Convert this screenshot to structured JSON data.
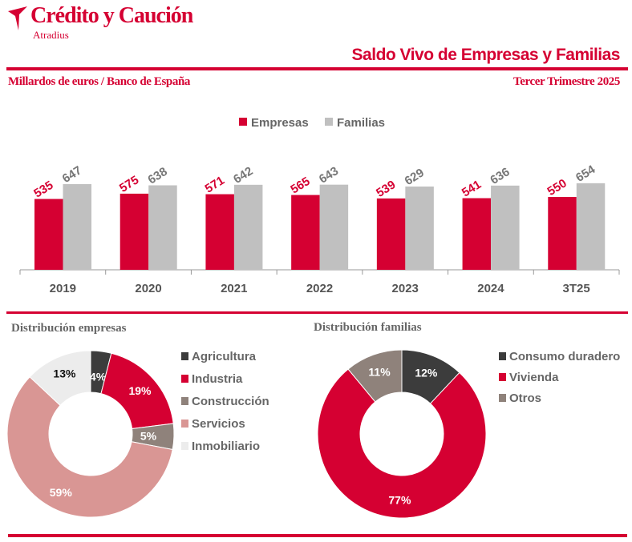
{
  "brand": {
    "name": "Crédito y Caución",
    "sub": "Atradius"
  },
  "header": {
    "title": "Saldo Vivo de Empresas y Familias",
    "source": "Millardos de euros / Banco de España",
    "period": "Tercer Trimestre  2025"
  },
  "colors": {
    "accent": "#d50032",
    "familias": "#c0c0c0",
    "dark": "#3c3c3c",
    "taupe": "#8f827b",
    "pink": "#d99694",
    "light": "#ececec"
  },
  "chart_data": [
    {
      "type": "bar",
      "categories": [
        "2019",
        "2020",
        "2021",
        "2022",
        "2023",
        "2024",
        "3T25"
      ],
      "series": [
        {
          "name": "Empresas",
          "values": [
            535,
            575,
            571,
            565,
            539,
            541,
            550
          ],
          "color": "#d50032"
        },
        {
          "name": "Familias",
          "values": [
            647,
            638,
            642,
            643,
            629,
            636,
            654
          ],
          "color": "#c0c0c0"
        }
      ],
      "ylim": [
        0,
        650
      ],
      "legend": "top-center",
      "grid": false
    },
    {
      "type": "pie",
      "title": "Distribución empresas",
      "donut": true,
      "labels": [
        "Agricultura",
        "Industria",
        "Construcción",
        "Servicios",
        "Inmobiliario"
      ],
      "values": [
        4,
        19,
        5,
        59,
        13
      ],
      "value_labels": [
        "4%",
        "19%",
        "5%",
        "59%",
        "13%"
      ],
      "colors": [
        "#3c3c3c",
        "#d50032",
        "#8f827b",
        "#d99694",
        "#ececec"
      ],
      "legend": "right"
    },
    {
      "type": "pie",
      "title": "Distribución familias",
      "donut": true,
      "labels": [
        "Consumo duradero",
        "Vivienda",
        "Otros"
      ],
      "values": [
        12,
        77,
        11
      ],
      "value_labels": [
        "12%",
        "77%",
        "11%"
      ],
      "colors": [
        "#3c3c3c",
        "#d50032",
        "#8f827b"
      ],
      "legend": "right"
    }
  ]
}
